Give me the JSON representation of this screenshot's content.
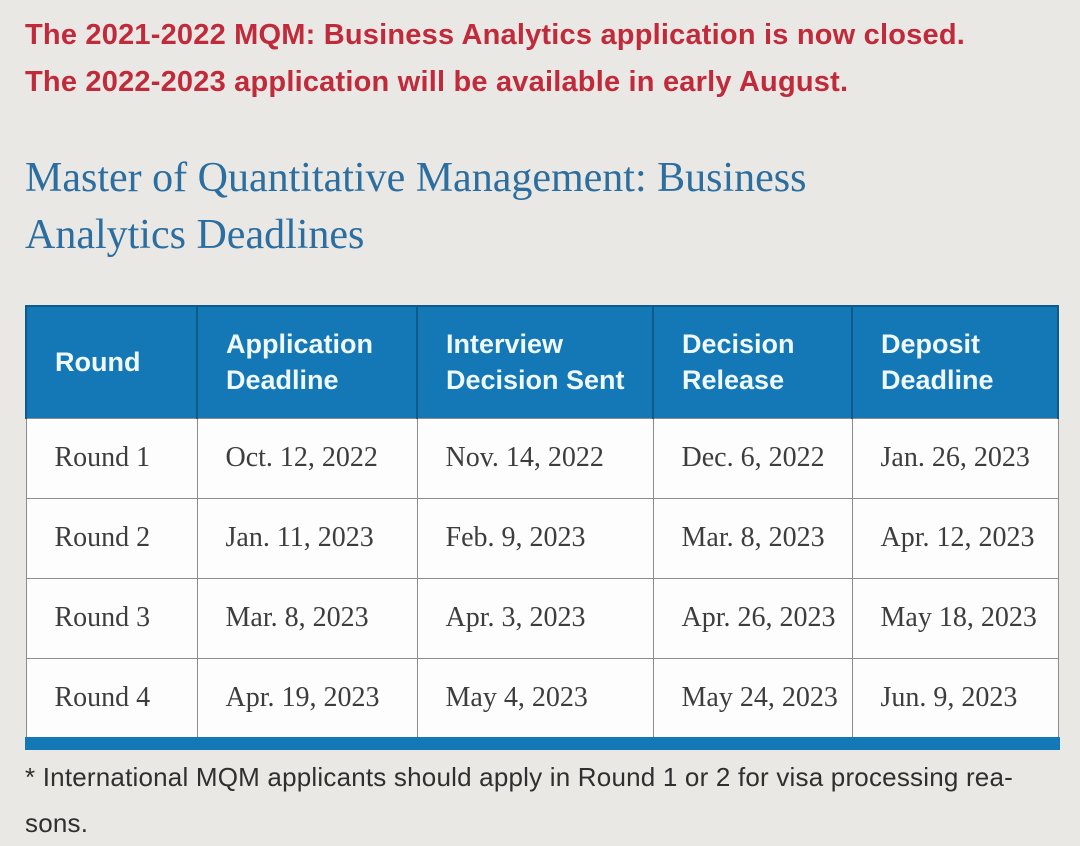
{
  "colors": {
    "page_background": "#eae8e4",
    "banner_red": "#c02b3c",
    "heading_blue": "#2b6e9f",
    "table_header_blue": "#1477b6",
    "table_header_separator": "#0e5a88",
    "body_border_gray": "#8c8c8c",
    "body_text": "#3d3d3d"
  },
  "banner": {
    "line1": "The 2021-2022 MQM: Business Analytics application is now closed.",
    "line2": "The 2022-2023 application will be available in early August."
  },
  "heading": {
    "line1": "Master of Quantitative Management: Business",
    "line2": "Analytics Deadlines"
  },
  "table": {
    "headers": [
      "Round",
      "Application Deadline",
      "Interview Decision Sent",
      "Decision Release",
      "Deposit Deadline"
    ],
    "rows": [
      [
        "Round 1",
        "Oct. 12, 2022",
        "Nov. 14, 2022",
        "Dec. 6, 2022",
        "Jan. 26, 2023"
      ],
      [
        "Round 2",
        "Jan. 11, 2023",
        "Feb. 9, 2023",
        "Mar. 8, 2023",
        "Apr. 12, 2023"
      ],
      [
        "Round 3",
        "Mar. 8, 2023",
        "Apr. 3, 2023",
        "Apr. 26, 2023",
        "May 18, 2023"
      ],
      [
        "Round 4",
        "Apr. 19, 2023",
        "May 4, 2023",
        "May 24, 2023",
        "Jun. 9, 2023"
      ]
    ]
  },
  "footnote": {
    "line1": "* International MQM applicants should apply in Round 1 or 2 for visa processing rea-",
    "line2": "sons."
  }
}
